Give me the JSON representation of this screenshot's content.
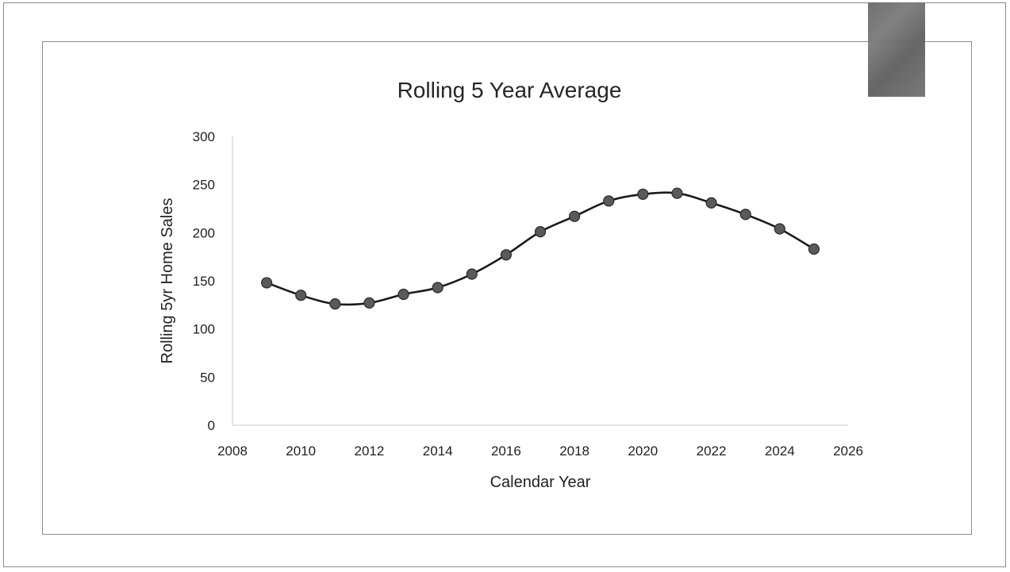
{
  "chart_data": {
    "type": "scatter",
    "title": "Rolling 5 Year Average",
    "xlabel": "Calendar Year",
    "ylabel": "Rolling 5yr Home Sales",
    "xlim": [
      2008,
      2026
    ],
    "ylim": [
      0,
      300
    ],
    "x_ticks": [
      "2008",
      "2010",
      "2012",
      "2014",
      "2016",
      "2018",
      "2020",
      "2022",
      "2024",
      "2026"
    ],
    "y_ticks": [
      "0",
      "50",
      "100",
      "150",
      "200",
      "250",
      "300"
    ],
    "grid": false,
    "legend": "none",
    "line_color": "#1a1a1a",
    "marker_color": "#5a5a5a",
    "points": [
      {
        "x": 2009,
        "y": 148
      },
      {
        "x": 2010,
        "y": 135
      },
      {
        "x": 2011,
        "y": 126
      },
      {
        "x": 2012,
        "y": 127
      },
      {
        "x": 2013,
        "y": 136
      },
      {
        "x": 2014,
        "y": 143
      },
      {
        "x": 2015,
        "y": 157
      },
      {
        "x": 2016,
        "y": 177
      },
      {
        "x": 2017,
        "y": 201
      },
      {
        "x": 2018,
        "y": 217
      },
      {
        "x": 2019,
        "y": 233
      },
      {
        "x": 2020,
        "y": 240
      },
      {
        "x": 2021,
        "y": 241
      },
      {
        "x": 2022,
        "y": 231
      },
      {
        "x": 2023,
        "y": 219
      },
      {
        "x": 2024,
        "y": 204
      },
      {
        "x": 2025,
        "y": 183
      }
    ]
  }
}
